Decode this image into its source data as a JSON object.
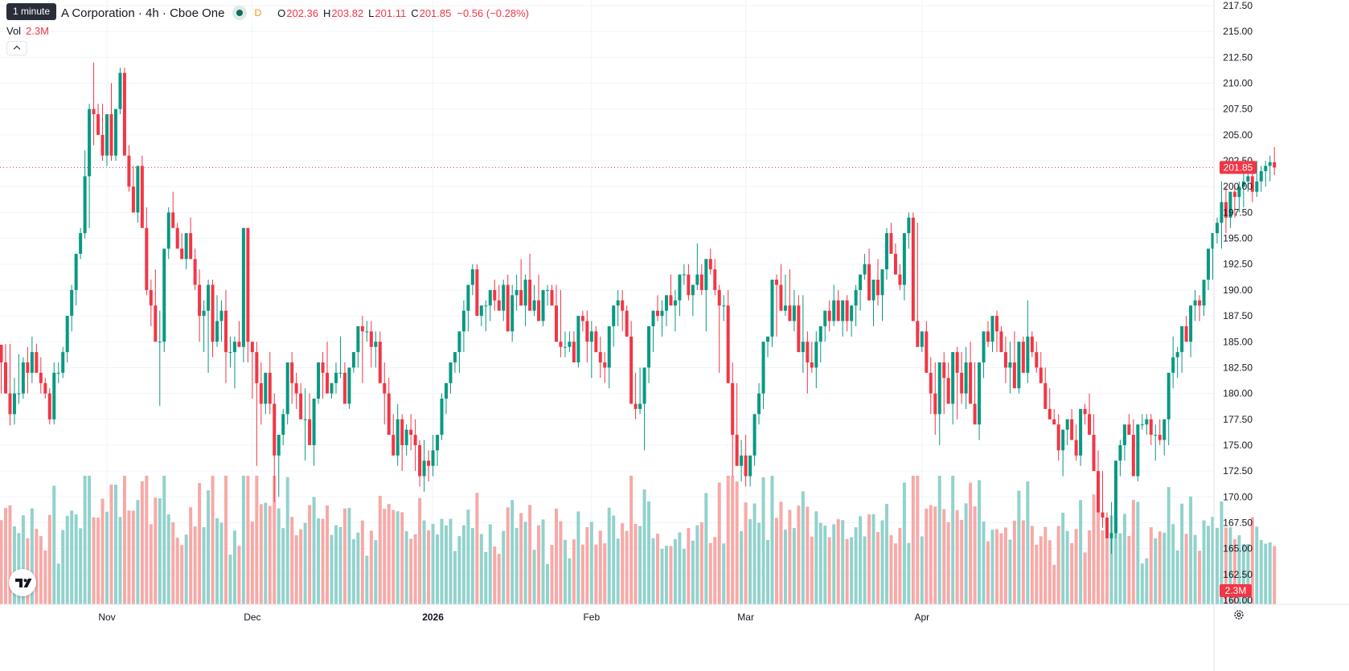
{
  "header": {
    "title": "A Corporation · 4h · Cboe One",
    "interval_tag": "D",
    "tooltip": "1 minute",
    "ohlc": {
      "o_label": "O",
      "o": "202.36",
      "h_label": "H",
      "h": "203.82",
      "l_label": "L",
      "l": "201.11",
      "c_label": "C",
      "c": "201.85",
      "change": "−0.56 (−0.28%)"
    }
  },
  "volume_legend": {
    "label": "Vol",
    "value": "2.3M"
  },
  "price_badge": "201.85",
  "volume_badge": "2.3M",
  "colors": {
    "up": "#089981",
    "down": "#f23645",
    "up_vol": "#92d2cc",
    "down_vol": "#f7a9a7",
    "grid": "#f0f3fa"
  },
  "icons": {
    "collapse": "chevron-up-icon",
    "logo": "tradingview-logo-icon",
    "settings": "gear-icon"
  },
  "chart_data": {
    "type": "candlestick",
    "y_axis": {
      "min": 160,
      "max": 217.5,
      "ticks": [
        "160.00",
        "162.50",
        "165.00",
        "167.50",
        "170.00",
        "172.50",
        "175.00",
        "177.50",
        "180.00",
        "182.50",
        "185.00",
        "187.50",
        "190.00",
        "192.50",
        "195.00",
        "197.50",
        "200.00",
        "202.50",
        "205.00",
        "207.50",
        "210.00",
        "212.50",
        "215.00",
        "217.50"
      ]
    },
    "x_axis": {
      "ticks": [
        {
          "label": "Nov",
          "index": 24
        },
        {
          "label": "Dec",
          "index": 57
        },
        {
          "label": "2026",
          "index": 98
        },
        {
          "label": "Feb",
          "index": 134
        },
        {
          "label": "Mar",
          "index": 169
        },
        {
          "label": "Apr",
          "index": 209
        }
      ]
    },
    "last_price": 201.85,
    "candles": [
      [
        184.7,
        184.7,
        180.0
      ],
      [
        183.0,
        184.8,
        180.0
      ],
      [
        180.0,
        184.8,
        176.9
      ],
      [
        178.0,
        181.5,
        177.0
      ],
      [
        180.0,
        183.8,
        179.0
      ],
      [
        180.0,
        183.5,
        179.5
      ],
      [
        183.0,
        184.5,
        180.0
      ],
      [
        182.0,
        185.5,
        181.0
      ],
      [
        184.0,
        184.8,
        182.5
      ],
      [
        182.0,
        183.5,
        180.0
      ],
      [
        181.0,
        181.5,
        179.5
      ],
      [
        180.0,
        180.5,
        177.0
      ],
      [
        177.5,
        183.0,
        177.0
      ],
      [
        182.0,
        183.0,
        181.0
      ],
      [
        182.0,
        184.5,
        181.5
      ],
      [
        184.0,
        186.0,
        183.0
      ],
      [
        187.5,
        190.5,
        186.0
      ],
      [
        190.0,
        192.0,
        188.5
      ],
      [
        193.5,
        196.0,
        193.0
      ],
      [
        195.5,
        203.5,
        195.0
      ],
      [
        201.0,
        208.0,
        196.0
      ],
      [
        207.5,
        212.0,
        204.0
      ],
      [
        207.0,
        208.0,
        205.0
      ],
      [
        205.0,
        208.0,
        202.5
      ],
      [
        203.0,
        206.0,
        202.0
      ],
      [
        207.0,
        210.0,
        202.5
      ],
      [
        203.0,
        205.0,
        202.5
      ],
      [
        207.5,
        211.5,
        207.0
      ],
      [
        211.0,
        211.5,
        206.0
      ],
      [
        203.0,
        204.0,
        199.5
      ],
      [
        200.0,
        202.0,
        198.0
      ],
      [
        197.5,
        201.0,
        196.5
      ],
      [
        202.0,
        203.0,
        198.0
      ],
      [
        196.0,
        198.0,
        189.5
      ],
      [
        190.0,
        191.0,
        186.5
      ],
      [
        188.5,
        192.0,
        186.0
      ],
      [
        185.0,
        188.0,
        178.8
      ],
      [
        185.0,
        189.0,
        184.0
      ],
      [
        194.0,
        198.0,
        193.0
      ],
      [
        197.5,
        199.5,
        196.0
      ],
      [
        196.0,
        196.5,
        194.0
      ],
      [
        194.0,
        195.5,
        193.0
      ],
      [
        193.0,
        195.5,
        192.0
      ],
      [
        195.5,
        197.0,
        193.0
      ],
      [
        193.0,
        194.0,
        190.0
      ],
      [
        190.5,
        192.0,
        185.0
      ],
      [
        187.5,
        189.0,
        184.0
      ],
      [
        188.0,
        191.0,
        182.0
      ],
      [
        190.5,
        191.0,
        183.5
      ],
      [
        185.0,
        189.5,
        184.5
      ],
      [
        187.0,
        189.0,
        185.0
      ],
      [
        188.0,
        190.0,
        181.0
      ],
      [
        184.0,
        185.5,
        182.5
      ],
      [
        184.0,
        185.5,
        180.5
      ],
      [
        185.0,
        187.0,
        184.5
      ],
      [
        184.5,
        185.0,
        183.0
      ],
      [
        196.0,
        196.0,
        183.0
      ],
      [
        185.0,
        185.0,
        179.5
      ],
      [
        184.0,
        185.0,
        173.0
      ],
      [
        181.0,
        183.0,
        177.0
      ],
      [
        179.0,
        182.0,
        178.0
      ],
      [
        182.0,
        184.0,
        178.0
      ],
      [
        179.0,
        180.0,
        169.5
      ],
      [
        174.0,
        176.0,
        170.0
      ],
      [
        176.0,
        178.5,
        175.0
      ],
      [
        178.0,
        179.5,
        177.0
      ],
      [
        183.0,
        184.0,
        179.0
      ],
      [
        181.0,
        182.0,
        178.5
      ],
      [
        180.0,
        181.0,
        179.0
      ],
      [
        177.5,
        180.5,
        173.5
      ],
      [
        177.5,
        180.0,
        176.5
      ],
      [
        175.0,
        178.5,
        173.0
      ],
      [
        179.5,
        182.5,
        179.0
      ],
      [
        183.0,
        184.0,
        179.5
      ],
      [
        182.0,
        185.0,
        181.0
      ],
      [
        180.0,
        181.0,
        179.5
      ],
      [
        181.0,
        183.0,
        180.0
      ],
      [
        182.0,
        185.5,
        181.5
      ],
      [
        182.0,
        183.0,
        179.5
      ],
      [
        179.0,
        182.0,
        178.5
      ],
      [
        182.5,
        184.0,
        182.0
      ],
      [
        184.0,
        185.5,
        182.5
      ],
      [
        186.5,
        187.5,
        181.0
      ],
      [
        186.0,
        187.0,
        185.0
      ],
      [
        186.0,
        187.0,
        182.5
      ],
      [
        184.5,
        186.0,
        182.5
      ],
      [
        185.0,
        186.0,
        184.0
      ],
      [
        181.0,
        183.0,
        177.0
      ],
      [
        180.0,
        181.5,
        176.0
      ],
      [
        176.0,
        178.0,
        174.0
      ],
      [
        174.0,
        179.0,
        173.0
      ],
      [
        177.5,
        178.0,
        172.5
      ],
      [
        175.0,
        177.0,
        174.0
      ],
      [
        176.5,
        178.0,
        174.5
      ],
      [
        176.0,
        177.5,
        172.5
      ],
      [
        175.0,
        175.5,
        171.0
      ],
      [
        172.0,
        175.5,
        170.5
      ],
      [
        173.5,
        174.5,
        171.5
      ],
      [
        173.0,
        176.0,
        172.0
      ],
      [
        174.5,
        176.0,
        173.0
      ],
      [
        176.0,
        180.0,
        175.5
      ],
      [
        179.5,
        181.0,
        178.0
      ],
      [
        181.0,
        182.0,
        180.0
      ],
      [
        183.0,
        184.0,
        182.0
      ],
      [
        184.0,
        184.5,
        182.0
      ],
      [
        186.0,
        189.0,
        184.0
      ],
      [
        188.0,
        190.0,
        186.0
      ],
      [
        190.5,
        192.5,
        189.5
      ],
      [
        192.0,
        192.5,
        190.0
      ],
      [
        187.5,
        188.5,
        186.5
      ],
      [
        188.5,
        189.0,
        186.0
      ],
      [
        188.5,
        190.0,
        187.0
      ],
      [
        190.0,
        191.0,
        188.0
      ],
      [
        189.0,
        190.5,
        188.5
      ],
      [
        188.0,
        191.0,
        187.0
      ],
      [
        190.5,
        191.5,
        189.0
      ],
      [
        186.0,
        190.5,
        185.0
      ],
      [
        189.5,
        191.5,
        188.0
      ],
      [
        190.0,
        193.0,
        189.0
      ],
      [
        188.5,
        191.5,
        186.5
      ],
      [
        191.0,
        193.5,
        188.0
      ],
      [
        188.0,
        190.5,
        187.5
      ],
      [
        189.0,
        191.5,
        187.0
      ],
      [
        187.0,
        189.5,
        186.5
      ],
      [
        190.0,
        190.5,
        188.5
      ],
      [
        190.0,
        190.5,
        189.0
      ],
      [
        188.5,
        190.5,
        187.0
      ],
      [
        185.0,
        190.0,
        183.5
      ],
      [
        184.5,
        186.0,
        183.5
      ],
      [
        184.5,
        186.0,
        184.0
      ],
      [
        185.0,
        186.0,
        183.0
      ],
      [
        183.0,
        187.5,
        182.5
      ],
      [
        187.5,
        188.0,
        186.0
      ],
      [
        187.0,
        188.0,
        183.0
      ],
      [
        185.0,
        187.0,
        181.5
      ],
      [
        186.0,
        186.5,
        184.5
      ],
      [
        184.0,
        185.5,
        181.5
      ],
      [
        183.0,
        184.0,
        181.0
      ],
      [
        182.5,
        183.0,
        180.5
      ],
      [
        186.5,
        187.5,
        184.5
      ],
      [
        188.5,
        190.0,
        186.5
      ],
      [
        189.0,
        190.0,
        186.0
      ],
      [
        188.0,
        188.5,
        186.5
      ],
      [
        185.5,
        187.0,
        180.0
      ],
      [
        179.0,
        182.0,
        177.5
      ],
      [
        178.5,
        182.5,
        178.0
      ],
      [
        179.0,
        181.0,
        174.5
      ],
      [
        182.5,
        183.0,
        181.0
      ],
      [
        186.5,
        187.5,
        184.0
      ],
      [
        188.0,
        189.5,
        187.0
      ],
      [
        187.5,
        189.0,
        185.5
      ],
      [
        188.0,
        188.5,
        186.5
      ],
      [
        189.5,
        191.5,
        188.5
      ],
      [
        188.5,
        190.0,
        186.0
      ],
      [
        189.0,
        191.5,
        187.5
      ],
      [
        191.5,
        192.5,
        190.5
      ],
      [
        191.5,
        192.5,
        189.0
      ],
      [
        189.5,
        190.5,
        187.5
      ],
      [
        190.5,
        194.5,
        190.0
      ],
      [
        191.5,
        192.5,
        189.5
      ],
      [
        190.0,
        191.5,
        186.0
      ],
      [
        193.0,
        194.0,
        191.5
      ],
      [
        192.0,
        193.0,
        189.5
      ],
      [
        190.0,
        190.5,
        182.0
      ],
      [
        188.5,
        189.5,
        187.0
      ],
      [
        188.5,
        190.0,
        181.5
      ],
      [
        181.0,
        183.0,
        172.0
      ],
      [
        176.0,
        181.0,
        174.0
      ],
      [
        173.0,
        175.5,
        171.5
      ],
      [
        174.0,
        176.0,
        171.0
      ],
      [
        172.0,
        174.0,
        171.0
      ],
      [
        174.0,
        175.5,
        173.0
      ],
      [
        178.0,
        181.0,
        177.0
      ],
      [
        180.0,
        180.5,
        178.5
      ],
      [
        185.0,
        185.5,
        183.5
      ],
      [
        185.5,
        190.0,
        184.5
      ],
      [
        191.0,
        191.5,
        185.5
      ],
      [
        190.5,
        192.5,
        189.0
      ],
      [
        188.0,
        191.5,
        187.5
      ],
      [
        188.5,
        192.0,
        188.0
      ],
      [
        187.0,
        190.0,
        186.0
      ],
      [
        188.5,
        189.5,
        186.5
      ],
      [
        184.0,
        189.5,
        182.0
      ],
      [
        185.0,
        186.0,
        180.0
      ],
      [
        183.0,
        185.0,
        182.0
      ],
      [
        182.5,
        186.0,
        180.5
      ],
      [
        185.0,
        186.0,
        183.0
      ],
      [
        186.5,
        187.5,
        185.0
      ],
      [
        188.0,
        189.0,
        186.0
      ],
      [
        187.0,
        190.5,
        186.5
      ],
      [
        189.0,
        190.0,
        187.0
      ],
      [
        187.0,
        189.0,
        185.5
      ],
      [
        189.0,
        189.5,
        186.0
      ],
      [
        187.0,
        188.0,
        185.5
      ],
      [
        188.5,
        190.5,
        186.5
      ],
      [
        190.0,
        191.5,
        188.0
      ],
      [
        191.5,
        193.5,
        191.0
      ],
      [
        192.5,
        194.0,
        190.0
      ],
      [
        189.0,
        191.0,
        186.5
      ],
      [
        191.0,
        193.0,
        188.5
      ],
      [
        189.5,
        191.0,
        187.0
      ],
      [
        192.0,
        196.0,
        191.0
      ],
      [
        195.5,
        196.5,
        194.0
      ],
      [
        193.5,
        194.5,
        191.5
      ],
      [
        191.5,
        192.5,
        190.0
      ],
      [
        190.5,
        192.0,
        189.0
      ],
      [
        195.5,
        197.5,
        194.0
      ],
      [
        197.0,
        197.5,
        195.0
      ],
      [
        187.0,
        196.5,
        185.0
      ],
      [
        184.5,
        186.0,
        184.0
      ],
      [
        186.0,
        187.0,
        184.0
      ],
      [
        182.0,
        183.5,
        178.0
      ],
      [
        180.0,
        183.0,
        176.0
      ],
      [
        178.0,
        182.5,
        175.0
      ],
      [
        183.0,
        184.0,
        178.0
      ],
      [
        181.5,
        183.0,
        180.0
      ],
      [
        179.0,
        182.0,
        177.0
      ],
      [
        184.0,
        184.5,
        177.5
      ],
      [
        182.0,
        184.0,
        179.0
      ],
      [
        180.0,
        184.5,
        178.5
      ],
      [
        183.0,
        185.0,
        180.0
      ],
      [
        179.0,
        183.0,
        177.5
      ],
      [
        177.0,
        181.0,
        175.5
      ],
      [
        183.0,
        184.0,
        181.5
      ],
      [
        186.0,
        187.0,
        184.5
      ],
      [
        185.0,
        187.0,
        184.0
      ],
      [
        187.5,
        188.0,
        184.0
      ],
      [
        186.0,
        186.5,
        185.0
      ],
      [
        184.0,
        185.5,
        181.0
      ],
      [
        182.5,
        185.0,
        180.0
      ],
      [
        183.0,
        186.0,
        182.0
      ],
      [
        180.5,
        184.5,
        180.0
      ],
      [
        185.0,
        185.5,
        182.0
      ],
      [
        182.0,
        189.0,
        181.0
      ],
      [
        185.5,
        186.0,
        183.5
      ],
      [
        184.0,
        185.0,
        182.0
      ],
      [
        182.5,
        184.0,
        181.0
      ],
      [
        181.0,
        182.5,
        179.5
      ],
      [
        178.5,
        180.5,
        177.5
      ],
      [
        177.5,
        178.5,
        177.0
      ],
      [
        177.0,
        178.0,
        173.5
      ],
      [
        174.5,
        176.0,
        172.0
      ],
      [
        176.5,
        177.0,
        175.0
      ],
      [
        177.5,
        178.5,
        176.5
      ],
      [
        175.5,
        177.0,
        173.5
      ],
      [
        174.0,
        176.0,
        173.0
      ],
      [
        178.5,
        179.0,
        177.0
      ],
      [
        178.0,
        180.0,
        177.0
      ],
      [
        176.0,
        178.0,
        173.5
      ],
      [
        172.5,
        174.5,
        171.0
      ],
      [
        168.5,
        172.5,
        167.0
      ],
      [
        168.0,
        168.5,
        166.0
      ],
      [
        166.0,
        169.5,
        164.5
      ],
      [
        166.5,
        173.5,
        166.0
      ],
      [
        173.5,
        175.5,
        172.0
      ],
      [
        175.0,
        176.5,
        173.5
      ],
      [
        177.0,
        178.0,
        176.0
      ],
      [
        176.0,
        177.5,
        173.0
      ],
      [
        172.0,
        177.0,
        171.5
      ],
      [
        177.0,
        178.0,
        176.5
      ],
      [
        177.0,
        178.0,
        176.0
      ],
      [
        177.5,
        178.0,
        175.0
      ],
      [
        176.0,
        177.0,
        173.5
      ],
      [
        176.0,
        177.5,
        175.0
      ],
      [
        175.5,
        176.0,
        174.0
      ],
      [
        177.5,
        178.0,
        175.0
      ],
      [
        182.0,
        185.5,
        180.5
      ],
      [
        183.5,
        184.5,
        181.5
      ],
      [
        184.0,
        185.0,
        182.0
      ],
      [
        186.5,
        187.5,
        185.0
      ],
      [
        185.0,
        186.5,
        183.5
      ],
      [
        188.5,
        190.0,
        187.0
      ],
      [
        189.0,
        189.5,
        187.0
      ],
      [
        188.5,
        190.0,
        187.5
      ],
      [
        191.0,
        191.5,
        190.0
      ],
      [
        194.0,
        195.0,
        191.0
      ],
      [
        195.5,
        197.0,
        194.5
      ],
      [
        196.5,
        200.5,
        194.0
      ],
      [
        198.5,
        200.0,
        195.5
      ],
      [
        197.0,
        199.0,
        196.0
      ],
      [
        199.5,
        200.0,
        197.0
      ],
      [
        199.0,
        200.5,
        197.5
      ],
      [
        200.0,
        202.0,
        198.0
      ],
      [
        200.5,
        202.5,
        199.5
      ],
      [
        201.0,
        202.5,
        198.5
      ],
      [
        199.5,
        202.5,
        199.0
      ],
      [
        200.5,
        202.0,
        199.5
      ],
      [
        201.5,
        202.5,
        200.0
      ],
      [
        202.0,
        203.0,
        200.5
      ],
      [
        202.36,
        203.82,
        201.11
      ]
    ]
  }
}
